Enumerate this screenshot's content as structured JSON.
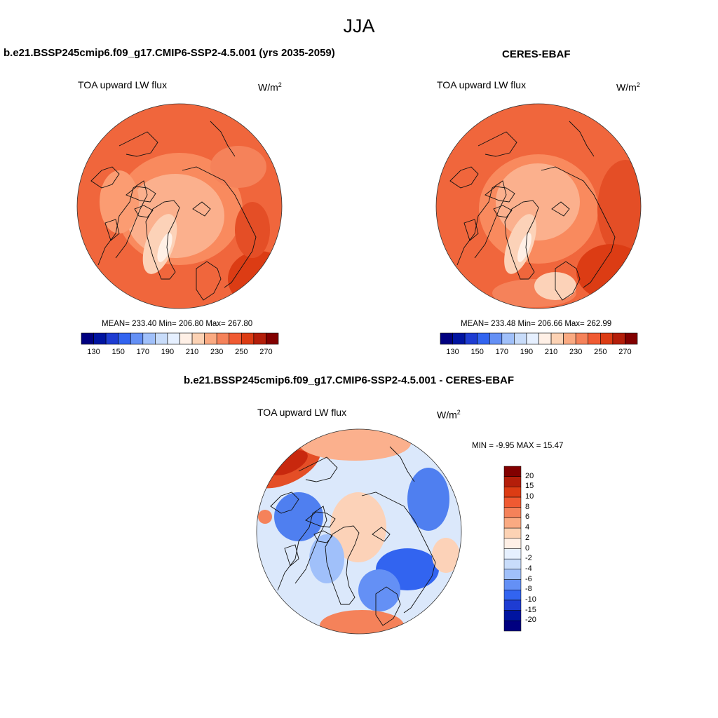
{
  "figure": {
    "season": "JJA"
  },
  "panels": [
    {
      "title": "b.e21.BSSP245cmip6.f09_g17.CMIP6-SSP2-4.5.001 (yrs 2035-2059)",
      "variable": "TOA upward LW flux",
      "units_base": "W/m",
      "units_exp": "2",
      "stats": "MEAN= 233.40  Min= 206.80  Max= 267.80"
    },
    {
      "title": "CERES-EBAF",
      "variable": "TOA upward LW flux",
      "units_base": "W/m",
      "units_exp": "2",
      "stats": "MEAN= 233.48  Min= 206.66  Max= 262.99"
    },
    {
      "title": "b.e21.BSSP245cmip6.f09_g17.CMIP6-SSP2-4.5.001 - CERES-EBAF",
      "variable": "TOA upward LW flux",
      "units_base": "W/m",
      "units_exp": "2",
      "stats": "MIN =  -9.95 MAX =  15.47"
    }
  ],
  "chart_data": [
    {
      "type": "heatmap",
      "projection": "north polar stereographic",
      "title": "b.e21.BSSP245cmip6.f09_g17.CMIP6-SSP2-4.5.001 (yrs 2035-2059)",
      "variable": "TOA upward LW flux",
      "units": "W/m2",
      "stats": {
        "mean": 233.4,
        "min": 206.8,
        "max": 267.8
      },
      "colorbar": {
        "orientation": "horizontal",
        "tick_labels": [
          "130",
          "150",
          "170",
          "190",
          "210",
          "230",
          "250",
          "270"
        ],
        "colors": [
          "#000080",
          "#0014a0",
          "#1e3cd2",
          "#3264f0",
          "#6490f5",
          "#a0c0fa",
          "#c8dcfa",
          "#e6f0ff",
          "#fff0e6",
          "#fcd2b4",
          "#faaa82",
          "#f5825a",
          "#f05a32",
          "#dc3c14",
          "#b41e0a",
          "#820000"
        ]
      }
    },
    {
      "type": "heatmap",
      "projection": "north polar stereographic",
      "title": "CERES-EBAF",
      "variable": "TOA upward LW flux",
      "units": "W/m2",
      "stats": {
        "mean": 233.48,
        "min": 206.66,
        "max": 262.99
      },
      "colorbar": {
        "orientation": "horizontal",
        "tick_labels": [
          "130",
          "150",
          "170",
          "190",
          "210",
          "230",
          "250",
          "270"
        ],
        "colors": [
          "#000080",
          "#0014a0",
          "#1e3cd2",
          "#3264f0",
          "#6490f5",
          "#a0c0fa",
          "#c8dcfa",
          "#e6f0ff",
          "#fff0e6",
          "#fcd2b4",
          "#faaa82",
          "#f5825a",
          "#f05a32",
          "#dc3c14",
          "#b41e0a",
          "#820000"
        ]
      }
    },
    {
      "type": "heatmap",
      "projection": "north polar stereographic",
      "title": "b.e21.BSSP245cmip6.f09_g17.CMIP6-SSP2-4.5.001 - CERES-EBAF",
      "variable": "TOA upward LW flux",
      "units": "W/m2",
      "stats": {
        "min": -9.95,
        "max": 15.47
      },
      "colorbar": {
        "orientation": "vertical",
        "tick_labels": [
          "20",
          "15",
          "10",
          "8",
          "6",
          "4",
          "2",
          "0",
          "-2",
          "-4",
          "-6",
          "-8",
          "-10",
          "-15",
          "-20"
        ],
        "colors": [
          "#820000",
          "#b41e0a",
          "#dc3c14",
          "#f05a32",
          "#f5825a",
          "#faaa82",
          "#fcd2b4",
          "#fff0e6",
          "#e6f0ff",
          "#c8dcfa",
          "#a0c0fa",
          "#6490f5",
          "#3264f0",
          "#1e3cd2",
          "#0014a0",
          "#000080"
        ]
      }
    }
  ]
}
